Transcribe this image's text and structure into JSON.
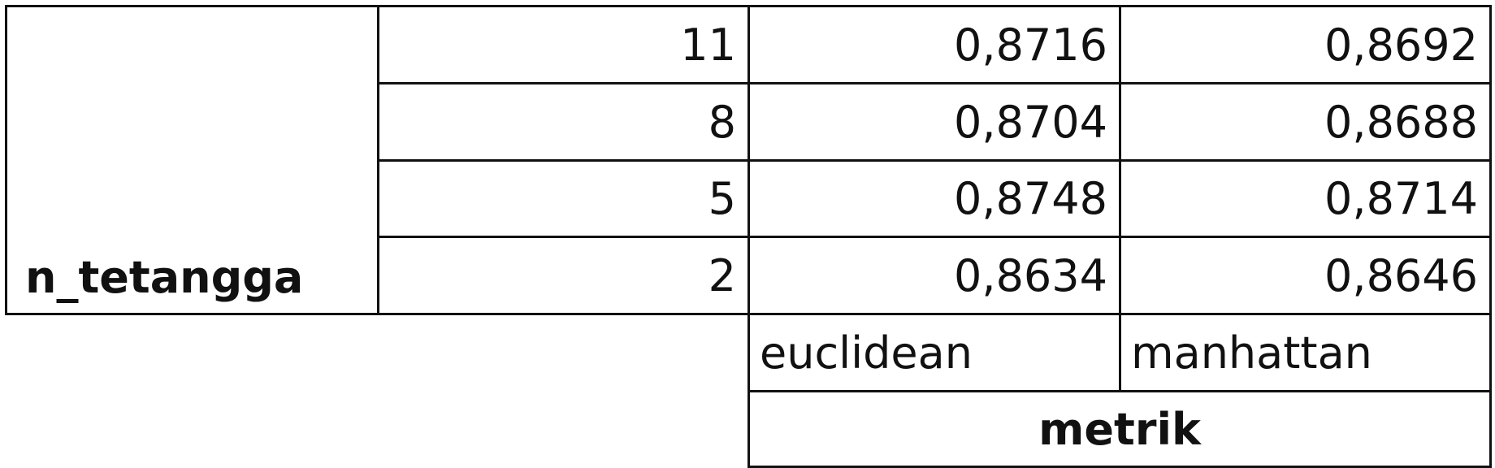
{
  "row_header": "n_tetangga",
  "column_header": "metrik",
  "columns": [
    "euclidean",
    "manhattan"
  ],
  "rows": [
    {
      "n": "11",
      "values": [
        "0,8716",
        "0,8692"
      ]
    },
    {
      "n": "8",
      "values": [
        "0,8704",
        "0,8688"
      ]
    },
    {
      "n": "5",
      "values": [
        "0,8748",
        "0,8714"
      ]
    },
    {
      "n": "2",
      "values": [
        "0,8634",
        "0,8646"
      ]
    }
  ]
}
